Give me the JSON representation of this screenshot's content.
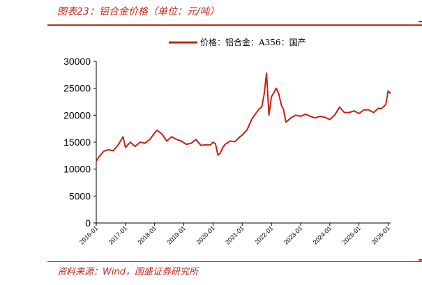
{
  "header": {
    "title": "图表23：铝合金价格（单位：元/吨）"
  },
  "footer": {
    "source": "资料来源：Wind，国盛证券研究所"
  },
  "colors": {
    "accent": "#c0271c",
    "series": "#c8200e"
  },
  "chart_data": {
    "type": "line",
    "title": "",
    "xlabel": "",
    "ylabel": "",
    "ylim": [
      0,
      30000
    ],
    "y_ticks": [
      "0",
      "5000",
      "10000",
      "15000",
      "20000",
      "25000",
      "30000"
    ],
    "x_ticks": [
      "2016-01",
      "2017-01",
      "2018-01",
      "2019-01",
      "2020-01",
      "2021-01",
      "2022-01",
      "2023-01",
      "2024-01",
      "2025-01",
      "2026-01"
    ],
    "xlim": [
      "2016-01",
      "2026-02"
    ],
    "grid": false,
    "legend": "top-center",
    "series": [
      {
        "name": "价格：铝合金：A356：国产",
        "x": [
          "2016-01",
          "2016-02",
          "2016-04",
          "2016-06",
          "2016-08",
          "2016-10",
          "2016-12",
          "2017-01",
          "2017-03",
          "2017-05",
          "2017-07",
          "2017-09",
          "2017-11",
          "2018-01",
          "2018-02",
          "2018-04",
          "2018-06",
          "2018-08",
          "2018-10",
          "2018-12",
          "2019-02",
          "2019-04",
          "2019-06",
          "2019-08",
          "2019-10",
          "2019-12",
          "2020-01",
          "2020-02",
          "2020-03",
          "2020-04",
          "2020-05",
          "2020-06",
          "2020-08",
          "2020-10",
          "2020-12",
          "2021-01",
          "2021-02",
          "2021-03",
          "2021-05",
          "2021-07",
          "2021-08",
          "2021-09",
          "2021-10",
          "2021-11",
          "2021-12",
          "2022-01",
          "2022-02",
          "2022-03",
          "2022-04",
          "2022-05",
          "2022-06",
          "2022-07",
          "2022-09",
          "2022-11",
          "2023-01",
          "2023-03",
          "2023-05",
          "2023-07",
          "2023-09",
          "2023-11",
          "2024-01",
          "2024-03",
          "2024-05",
          "2024-07",
          "2024-09",
          "2024-11",
          "2025-01",
          "2025-03",
          "2025-05",
          "2025-07",
          "2025-09",
          "2025-10",
          "2025-11",
          "2025-12",
          "2026-01",
          "2026-02"
        ],
        "values": [
          11500,
          12200,
          13300,
          13600,
          13400,
          14500,
          16000,
          14000,
          15000,
          14200,
          15000,
          14800,
          15500,
          16700,
          17200,
          16500,
          15200,
          16000,
          15500,
          15200,
          14600,
          14800,
          15500,
          14400,
          14500,
          14500,
          15000,
          14700,
          12600,
          13000,
          14000,
          14600,
          15200,
          15100,
          16000,
          16300,
          16800,
          17300,
          19300,
          20600,
          21200,
          21500,
          23800,
          27800,
          20000,
          23400,
          24200,
          25000,
          24000,
          22000,
          21000,
          18700,
          19500,
          20000,
          19800,
          20200,
          19800,
          19500,
          19800,
          19600,
          19200,
          20000,
          21500,
          20500,
          20500,
          20800,
          20300,
          21000,
          21000,
          20500,
          21300,
          21200,
          21500,
          22000,
          24500,
          24000
        ]
      }
    ]
  }
}
